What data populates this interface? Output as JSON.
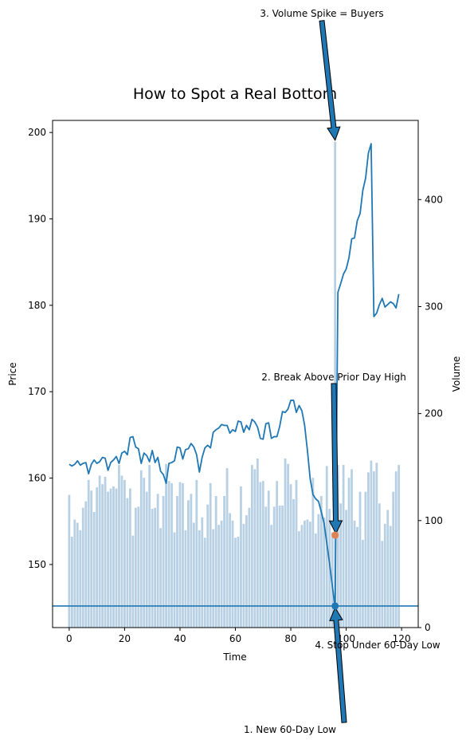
{
  "chart_data": {
    "type": "line",
    "title": "How to Spot a Real Bottom",
    "xlabel": "Time",
    "ylabel": "Price",
    "ylabel_right": "Volume",
    "xlim": [
      -6,
      126
    ],
    "ylim": [
      142.7,
      201.4
    ],
    "ylim_right": [
      0,
      474
    ],
    "x_ticks": [
      0,
      20,
      40,
      60,
      80,
      100,
      120
    ],
    "y_ticks": [
      150,
      160,
      170,
      180,
      190,
      200
    ],
    "y_ticks_right": [
      0,
      100,
      200,
      300,
      400
    ],
    "grid": false,
    "series": [
      {
        "name": "Price",
        "type": "line",
        "color": "#1f77b4",
        "x": [
          0,
          1,
          2,
          3,
          4,
          5,
          6,
          7,
          8,
          9,
          10,
          11,
          12,
          13,
          14,
          15,
          16,
          17,
          18,
          19,
          20,
          21,
          22,
          23,
          24,
          25,
          26,
          27,
          28,
          29,
          30,
          31,
          32,
          33,
          34,
          35,
          36,
          37,
          38,
          39,
          40,
          41,
          42,
          43,
          44,
          45,
          46,
          47,
          48,
          49,
          50,
          51,
          52,
          53,
          54,
          55,
          56,
          57,
          58,
          59,
          60,
          61,
          62,
          63,
          64,
          65,
          66,
          67,
          68,
          69,
          70,
          71,
          72,
          73,
          74,
          75,
          76,
          77,
          78,
          79,
          80,
          81,
          82,
          83,
          84,
          85,
          86,
          87,
          88,
          89,
          90,
          91,
          92,
          93,
          94,
          95,
          96,
          97,
          98,
          99,
          100,
          101,
          102,
          103,
          104,
          105,
          106,
          107,
          108,
          109,
          110,
          111,
          112,
          113,
          114,
          115,
          116,
          117,
          118,
          119
        ],
        "y": [
          161.6,
          161.4,
          161.6,
          162.0,
          161.5,
          161.7,
          161.8,
          160.5,
          161.6,
          162.1,
          161.7,
          161.9,
          162.4,
          162.3,
          160.9,
          161.8,
          162.1,
          162.5,
          161.7,
          162.9,
          163.1,
          162.7,
          164.7,
          164.8,
          163.6,
          163.4,
          161.7,
          162.9,
          162.6,
          161.9,
          163.2,
          161.8,
          162.4,
          160.8,
          160.4,
          159.4,
          161.7,
          161.8,
          162.0,
          163.6,
          163.5,
          162.2,
          163.3,
          163.4,
          164.0,
          163.6,
          162.7,
          160.7,
          162.4,
          163.5,
          163.8,
          163.5,
          165.3,
          165.6,
          165.8,
          166.2,
          166.1,
          166.1,
          165.2,
          165.6,
          165.4,
          166.6,
          166.5,
          165.3,
          166.1,
          165.6,
          166.8,
          166.5,
          165.9,
          164.6,
          164.5,
          166.3,
          166.4,
          164.6,
          164.8,
          164.8,
          166.0,
          167.7,
          167.6,
          168.0,
          169.0,
          169.0,
          167.6,
          168.4,
          167.8,
          166.1,
          163.2,
          159.9,
          158.1,
          157.6,
          157.3,
          156.1,
          154.8,
          152.5,
          150.1,
          147.5,
          145.0,
          181.5,
          182.5,
          183.6,
          184.2,
          185.5,
          187.7,
          187.8,
          189.8,
          190.6,
          193.3,
          194.7,
          197.6,
          198.7,
          178.7,
          179.1,
          180.1,
          180.8,
          179.8,
          180.1,
          180.4,
          180.2,
          179.7,
          181.3
        ]
      },
      {
        "name": "Volume",
        "type": "bar",
        "axis": "right",
        "color": "#b8d0e4",
        "x": [
          0,
          1,
          2,
          3,
          4,
          5,
          6,
          7,
          8,
          9,
          10,
          11,
          12,
          13,
          14,
          15,
          16,
          17,
          18,
          19,
          20,
          21,
          22,
          23,
          24,
          25,
          26,
          27,
          28,
          29,
          30,
          31,
          32,
          33,
          34,
          35,
          36,
          37,
          38,
          39,
          40,
          41,
          42,
          43,
          44,
          45,
          46,
          47,
          48,
          49,
          50,
          51,
          52,
          53,
          54,
          55,
          56,
          57,
          58,
          59,
          60,
          61,
          62,
          63,
          64,
          65,
          66,
          67,
          68,
          69,
          70,
          71,
          72,
          73,
          74,
          75,
          76,
          77,
          78,
          79,
          80,
          81,
          82,
          83,
          84,
          85,
          86,
          87,
          88,
          89,
          90,
          91,
          92,
          93,
          94,
          95,
          96,
          97,
          98,
          99,
          100,
          101,
          102,
          103,
          104,
          105,
          106,
          107,
          108,
          109,
          110,
          111,
          112,
          113,
          114,
          115,
          116,
          117,
          118,
          119
        ],
        "values": [
          124,
          85,
          101,
          98,
          91,
          112,
          118,
          138,
          128,
          108,
          131,
          142,
          134,
          141,
          127,
          130,
          132,
          130,
          152,
          142,
          138,
          121,
          130,
          86,
          112,
          113,
          147,
          140,
          127,
          152,
          111,
          112,
          125,
          93,
          123,
          153,
          137,
          135,
          89,
          123,
          136,
          135,
          91,
          119,
          125,
          98,
          138,
          91,
          103,
          84,
          115,
          135,
          92,
          123,
          96,
          100,
          123,
          149,
          107,
          100,
          84,
          85,
          132,
          97,
          105,
          112,
          152,
          148,
          158,
          136,
          137,
          113,
          128,
          96,
          113,
          137,
          114,
          114,
          158,
          153,
          134,
          120,
          138,
          90,
          96,
          100,
          101,
          99,
          140,
          88,
          106,
          123,
          103,
          151,
          111,
          89,
          454,
          152,
          116,
          152,
          110,
          140,
          148,
          100,
          94,
          127,
          82,
          127,
          145,
          156,
          146,
          154,
          116,
          81,
          97,
          110,
          95,
          127,
          146,
          152
        ]
      }
    ],
    "reference_line": {
      "orientation": "horizontal",
      "y": 145.2,
      "color": "#1f77b4"
    },
    "markers": [
      {
        "x": 96,
        "y": 145.2,
        "color": "#1f77b4"
      },
      {
        "x": 96,
        "y": 153.4,
        "color": "#dd8452"
      }
    ],
    "annotations": [
      {
        "text": "1. New 60-Day Low",
        "point_x": 96,
        "point_y": 145.2
      },
      {
        "text": "2. Break Above Prior Day High",
        "point_x": 96,
        "point_y": 153.4
      },
      {
        "text": "3. Volume Spike = Buyers",
        "point_x": 96,
        "point_y": 454,
        "axis": "right"
      },
      {
        "text": "4. Stop Under 60-Day Low"
      }
    ],
    "arrow_color": "#1f77b4"
  }
}
